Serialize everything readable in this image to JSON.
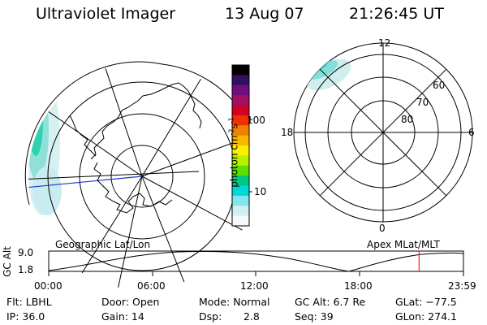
{
  "header": {
    "instrument": "Ultraviolet Imager",
    "date": "13 Aug 07",
    "time": "21:26:45 UT"
  },
  "colorbar": {
    "label": "photon cm",
    "label_sup1": "-2",
    "label_s": "s",
    "label_sup2": "-1",
    "tick_100": "100",
    "tick_10": "10",
    "colors": [
      "#000000",
      "#301060",
      "#701080",
      "#a01060",
      "#d00020",
      "#f03000",
      "#f08000",
      "#f8b800",
      "#f8f000",
      "#b8f000",
      "#60e000",
      "#00c880",
      "#00d8d8",
      "#80e8e8",
      "#d0f0f0",
      "#f8f8f8"
    ]
  },
  "left_map": {
    "caption": "Geographic Lat/Lon"
  },
  "right_map": {
    "caption": "Apex MLat/MLT",
    "mlt_12": "12",
    "mlt_18": "18",
    "mlt_6": "6",
    "mlt_0": "0",
    "mlat_60": "60",
    "mlat_70": "70",
    "mlat_80": "80"
  },
  "altitude_plot": {
    "ylabel": "GC Alt",
    "ytick_high": "9.0",
    "ytick_low": "1.8",
    "xticks": [
      "00:00",
      "06:00",
      "12:00",
      "18:00",
      "23:59"
    ],
    "current_time_fraction": 0.893
  },
  "status": {
    "flt": "Flt: LBHL",
    "ip": "IP: 36.0",
    "door": "Door: Open",
    "gain": "Gain: 14",
    "mode": "Mode: Normal",
    "dsp_label": "Dsp:",
    "dsp_value": "2.8",
    "gc_alt": "GC Alt: 6.7 Re",
    "seq": "Seq: 39",
    "glat": "GLat: −77.5",
    "glon": "GLon: 274.1"
  }
}
